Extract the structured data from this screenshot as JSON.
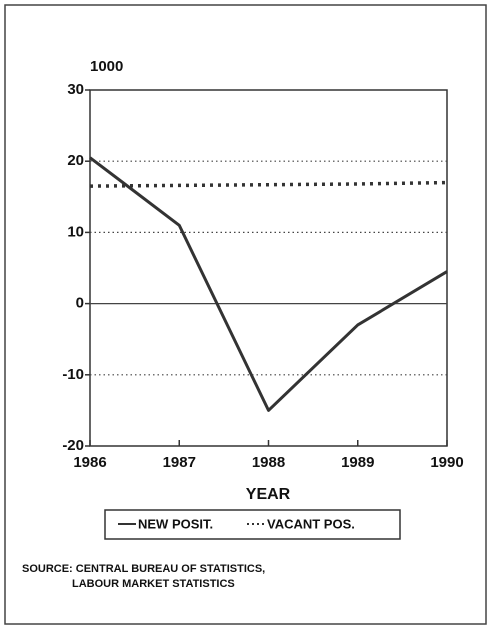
{
  "chart_data": {
    "type": "line",
    "y_unit_label": "1000",
    "xlabel": "YEAR",
    "x": [
      1986,
      1987,
      1988,
      1989,
      1990
    ],
    "series": [
      {
        "name": "NEW POSIT.",
        "color": "#333333",
        "style": "solid",
        "values": [
          20.5,
          11,
          -15,
          -3,
          4.5
        ]
      },
      {
        "name": "VACANT POS.",
        "color": "#333333",
        "style": "dotted",
        "values": [
          16.5,
          16.6,
          16.7,
          16.8,
          17
        ]
      }
    ],
    "xlim": [
      1986,
      1990
    ],
    "xticks": [
      1986,
      1987,
      1988,
      1989,
      1990
    ],
    "ylim": [
      -20,
      30
    ],
    "yticks": [
      -20,
      -10,
      0,
      10,
      20,
      30
    ],
    "grid": true,
    "source": [
      "SOURCE: CENTRAL BUREAU OF STATISTICS,",
      "LABOUR MARKET STATISTICS"
    ]
  }
}
